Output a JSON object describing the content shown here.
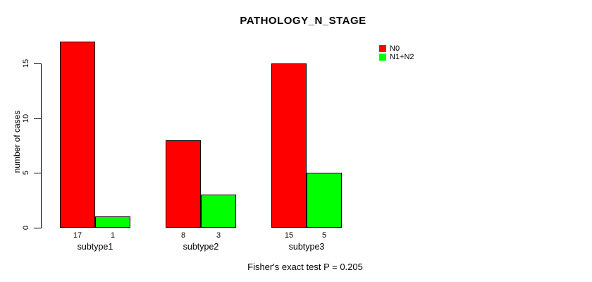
{
  "chart_data": {
    "type": "bar",
    "title": "PATHOLOGY_N_STAGE",
    "xlabel": "",
    "ylabel": "number of cases",
    "categories": [
      "subtype1",
      "subtype2",
      "subtype3"
    ],
    "series": [
      {
        "name": "N0",
        "color": "#FF0000",
        "values": [
          17,
          8,
          15
        ]
      },
      {
        "name": "N1+N2",
        "color": "#00FF00",
        "values": [
          1,
          3,
          5
        ]
      }
    ],
    "yticks": [
      0,
      5,
      10,
      15
    ],
    "ylim": [
      0,
      17
    ],
    "grid": false,
    "bar_value_labels_shown": true,
    "legend_position": "top-right",
    "annotation": "Fisher's exact test P = 0.205",
    "axis_color": "#000000",
    "background_color": "#FFFFFF"
  }
}
